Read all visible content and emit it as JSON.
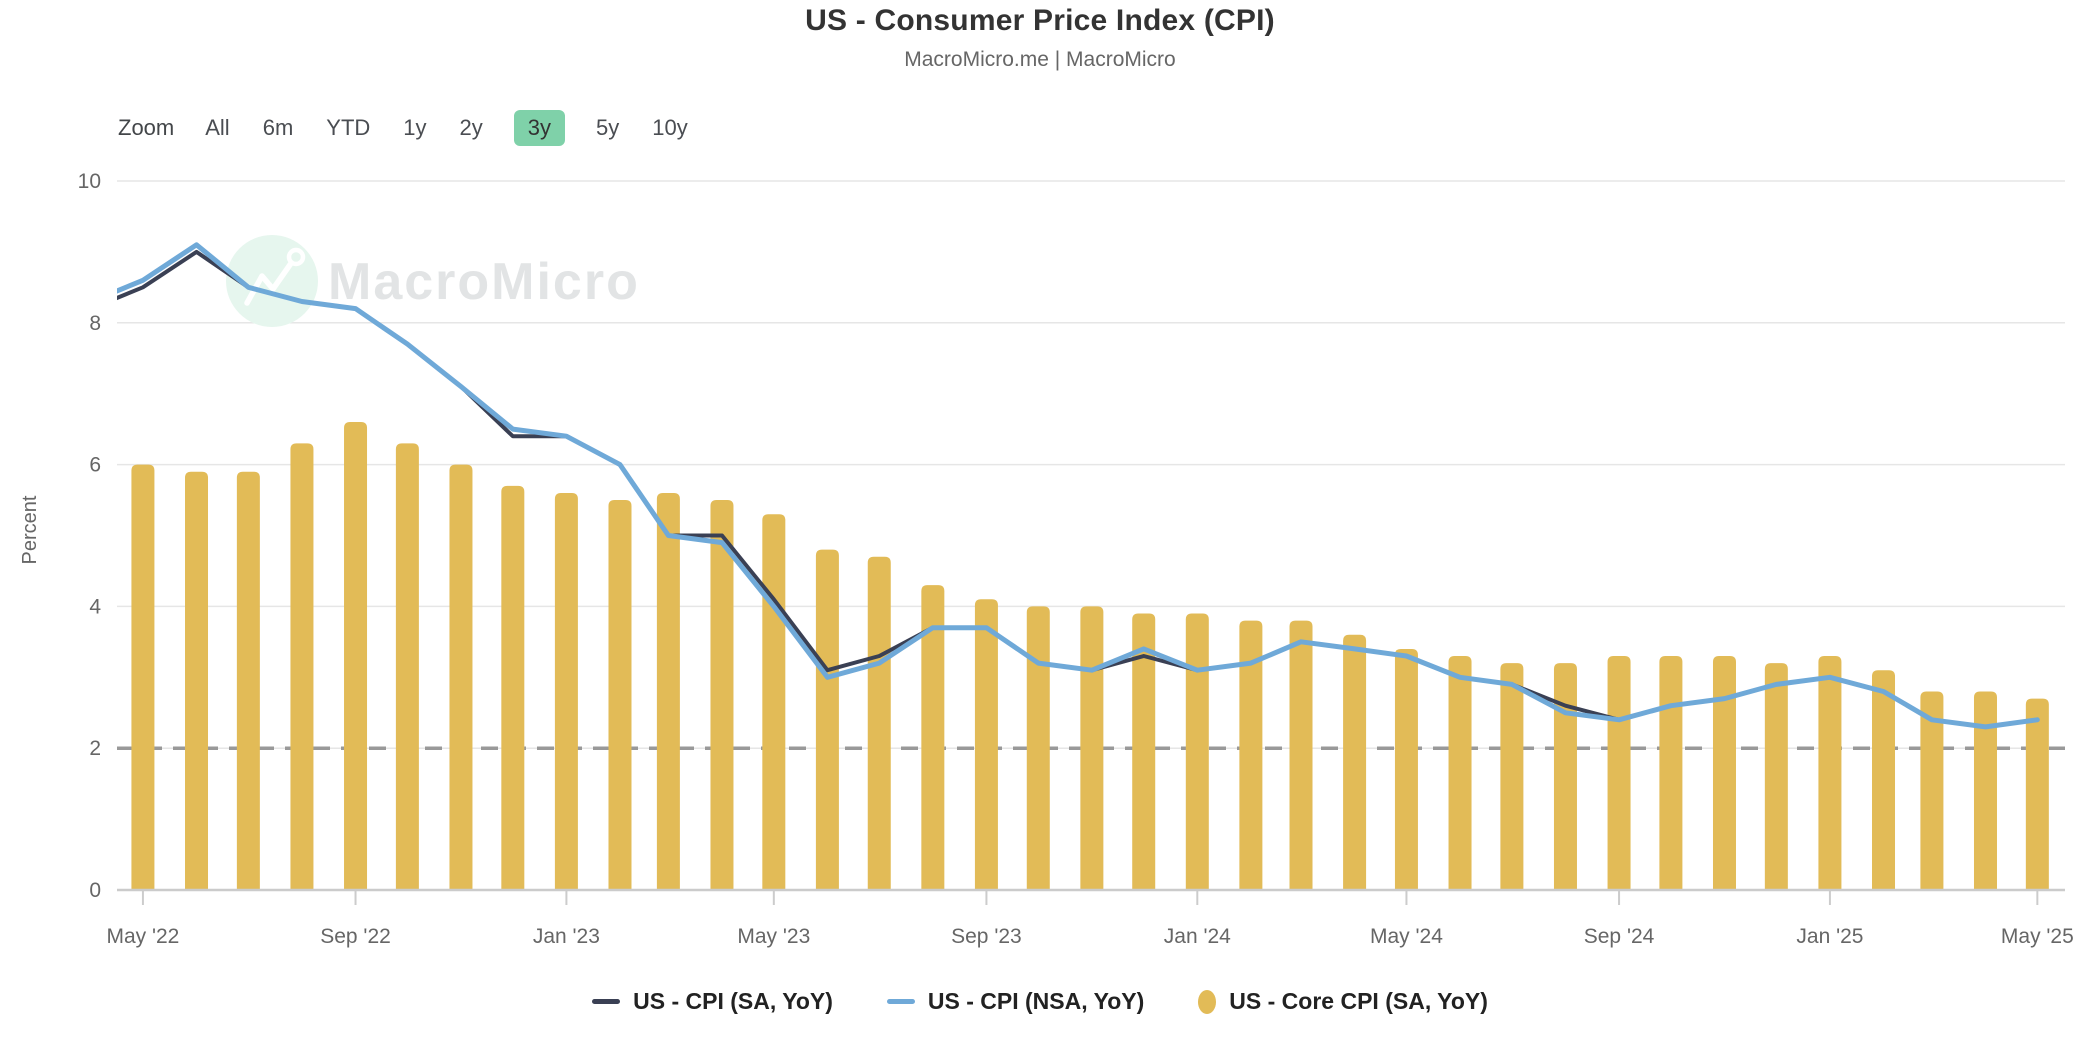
{
  "header": {
    "title": "US - Consumer Price Index (CPI)",
    "subtitle": "MacroMicro.me | MacroMicro"
  },
  "watermark": {
    "text": "MacroMicro"
  },
  "range_selector": {
    "zoom_label": "Zoom",
    "buttons": [
      "All",
      "6m",
      "YTD",
      "1y",
      "2y",
      "3y",
      "5y",
      "10y"
    ],
    "selected": "3y"
  },
  "y_axis": {
    "title": "Percent",
    "ticks": [
      0,
      2,
      4,
      6,
      8,
      10
    ],
    "min": 0,
    "max": 10
  },
  "x_axis": {
    "ticks": [
      {
        "label": "May '22",
        "category": "May 2022"
      },
      {
        "label": "Sep '22",
        "category": "Sep 2022"
      },
      {
        "label": "Jan '23",
        "category": "Jan 2023"
      },
      {
        "label": "May '23",
        "category": "May 2023"
      },
      {
        "label": "Sep '23",
        "category": "Sep 2023"
      },
      {
        "label": "Jan '24",
        "category": "Jan 2024"
      },
      {
        "label": "May '24",
        "category": "May 2024"
      },
      {
        "label": "Sep '24",
        "category": "Sep 2024"
      },
      {
        "label": "Jan '25",
        "category": "Jan 2025"
      },
      {
        "label": "May '25",
        "category": "May 2025"
      }
    ]
  },
  "reference_line": {
    "value": 2,
    "style": "dashed"
  },
  "legend": [
    {
      "label": "US - CPI (SA, YoY)",
      "type": "line",
      "color": "#3A4054"
    },
    {
      "label": "US - CPI (NSA, YoY)",
      "type": "line",
      "color": "#6FA9D8"
    },
    {
      "label": "US - Core CPI (SA, YoY)",
      "type": "bar",
      "color": "#E2BB57"
    }
  ],
  "colors": {
    "grid": "#E6E6E6",
    "axis_line": "#CBCBCB",
    "tick": "#CCCCCC",
    "axis_text": "#666666",
    "reference": "#999999",
    "selected_button_bg": "#7FD1A9",
    "watermark_circle": "#E6F6EE",
    "watermark_text": "#E2E4E5",
    "cpi_sa": "#3A4054",
    "cpi_nsa": "#6FA9D8",
    "core_cpi": "#E2BB57"
  },
  "chart_data": {
    "type": "combo (bar + 2 lines)",
    "title": "US - Consumer Price Index (CPI)",
    "ylabel": "Percent",
    "ylim": [
      0,
      10
    ],
    "grid": true,
    "legend_position": "bottom",
    "reference_line_y": 2,
    "categories": [
      "May 2022",
      "Jun 2022",
      "Jul 2022",
      "Aug 2022",
      "Sep 2022",
      "Oct 2022",
      "Nov 2022",
      "Dec 2022",
      "Jan 2023",
      "Feb 2023",
      "Mar 2023",
      "Apr 2023",
      "May 2023",
      "Jun 2023",
      "Jul 2023",
      "Aug 2023",
      "Sep 2023",
      "Oct 2023",
      "Nov 2023",
      "Dec 2023",
      "Jan 2024",
      "Feb 2024",
      "Mar 2024",
      "Apr 2024",
      "May 2024",
      "Jun 2024",
      "Jul 2024",
      "Aug 2024",
      "Sep 2024",
      "Oct 2024",
      "Nov 2024",
      "Dec 2024",
      "Jan 2025",
      "Feb 2025",
      "Mar 2025",
      "Apr 2025",
      "May 2025"
    ],
    "series": [
      {
        "name": "US - CPI (SA, YoY)",
        "type": "line",
        "color": "#3A4054",
        "values": [
          8.5,
          9.0,
          8.5,
          8.3,
          8.2,
          7.7,
          7.1,
          6.4,
          6.4,
          6.0,
          5.0,
          5.0,
          4.1,
          3.1,
          3.3,
          3.7,
          3.7,
          3.2,
          3.1,
          3.3,
          3.1,
          3.2,
          3.5,
          3.4,
          3.3,
          3.0,
          2.9,
          2.6,
          2.4,
          2.6,
          2.7,
          2.9,
          3.0,
          2.8,
          2.4,
          2.3,
          2.4
        ]
      },
      {
        "name": "US - CPI (NSA, YoY)",
        "type": "line",
        "color": "#6FA9D8",
        "values": [
          8.6,
          9.1,
          8.5,
          8.3,
          8.2,
          7.7,
          7.1,
          6.5,
          6.4,
          6.0,
          5.0,
          4.9,
          4.0,
          3.0,
          3.2,
          3.7,
          3.7,
          3.2,
          3.1,
          3.4,
          3.1,
          3.2,
          3.5,
          3.4,
          3.3,
          3.0,
          2.9,
          2.5,
          2.4,
          2.6,
          2.7,
          2.9,
          3.0,
          2.8,
          2.4,
          2.3,
          2.4
        ]
      },
      {
        "name": "US - Core CPI (SA, YoY)",
        "type": "bar",
        "color": "#E2BB57",
        "values": [
          6.0,
          5.9,
          5.9,
          6.3,
          6.6,
          6.3,
          6.0,
          5.7,
          5.6,
          5.5,
          5.6,
          5.5,
          5.3,
          4.8,
          4.7,
          4.3,
          4.1,
          4.0,
          4.0,
          3.9,
          3.9,
          3.8,
          3.8,
          3.6,
          3.4,
          3.3,
          3.2,
          3.2,
          3.3,
          3.3,
          3.3,
          3.2,
          3.3,
          3.1,
          2.8,
          2.8,
          2.7
        ]
      }
    ],
    "lead_in": {
      "category": "Apr 2022",
      "values": [
        8.2,
        8.3,
        null
      ]
    }
  }
}
